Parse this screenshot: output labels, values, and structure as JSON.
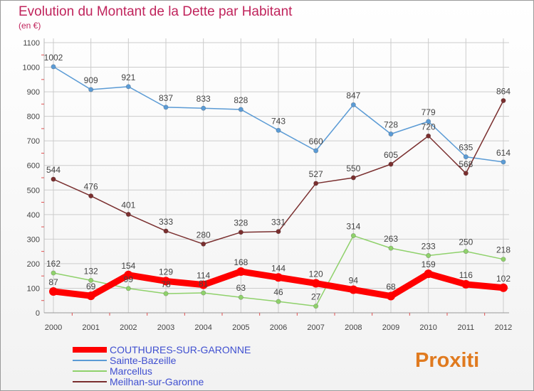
{
  "chart_data": {
    "type": "line",
    "title": "Evolution du Montant de la Dette par Habitant",
    "subtitle": "(en €)",
    "x": [
      "2000",
      "2001",
      "2002",
      "2003",
      "2004",
      "2005",
      "2006",
      "2007",
      "2008",
      "2009",
      "2010",
      "2011",
      "2012"
    ],
    "ylim": [
      0,
      1100
    ],
    "yticks": [
      0,
      100,
      200,
      300,
      400,
      500,
      600,
      700,
      800,
      900,
      1000,
      1100
    ],
    "grid": true,
    "legend_position": "bottom-left",
    "series": [
      {
        "name": "COUTHURES-SUR-GARONNE",
        "color": "#ff0000",
        "values": [
          87,
          69,
          154,
          129,
          114,
          168,
          144,
          120,
          94,
          68,
          159,
          116,
          102
        ]
      },
      {
        "name": "Sainte-Bazeille",
        "color": "#5b9bd5",
        "values": [
          1002,
          909,
          921,
          837,
          833,
          828,
          743,
          660,
          847,
          728,
          779,
          635,
          614
        ]
      },
      {
        "name": "Marcellus",
        "color": "#8fd16b",
        "values": [
          162,
          132,
          99,
          78,
          81,
          63,
          46,
          27,
          314,
          263,
          233,
          250,
          218
        ]
      },
      {
        "name": "Meilhan-sur-Garonne",
        "color": "#7a2f2f",
        "values": [
          544,
          476,
          401,
          333,
          280,
          328,
          331,
          527,
          550,
          605,
          720,
          568,
          864
        ]
      }
    ]
  },
  "colors": {
    "title": "#c0245c",
    "subtitle": "#c0245c",
    "legend_text": "#3f4fd0",
    "axis_text": "#444444",
    "grid": "#cccccc",
    "label_text": "#444444"
  },
  "logo": {
    "text": "Proxiti"
  }
}
